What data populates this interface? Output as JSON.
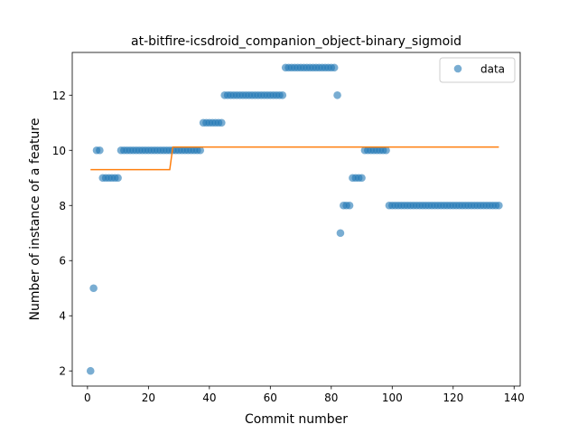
{
  "chart_data": {
    "type": "scatter",
    "title": "at-bitfire-icsdroid_companion_object-binary_sigmoid",
    "xlabel": "Commit number",
    "ylabel": "Number of instance of a feature",
    "xlim": [
      -5,
      142
    ],
    "ylim": [
      1.45,
      13.55
    ],
    "xticks": [
      0,
      20,
      40,
      60,
      80,
      100,
      120,
      140
    ],
    "yticks": [
      2,
      4,
      6,
      8,
      10,
      12
    ],
    "grid": false,
    "legend": {
      "position": "upper right",
      "entries": [
        "data"
      ]
    },
    "colors": {
      "data": "#1f77b4",
      "fit": "#ff7f0e"
    },
    "series": [
      {
        "name": "data",
        "kind": "scatter",
        "points": [
          [
            1,
            2
          ],
          [
            2,
            5
          ],
          [
            3,
            10
          ],
          [
            4,
            10
          ],
          [
            5,
            9
          ],
          [
            6,
            9
          ],
          [
            7,
            9
          ],
          [
            8,
            9
          ],
          [
            9,
            9
          ],
          [
            10,
            9
          ],
          [
            11,
            10
          ],
          [
            12,
            10
          ],
          [
            13,
            10
          ],
          [
            14,
            10
          ],
          [
            15,
            10
          ],
          [
            16,
            10
          ],
          [
            17,
            10
          ],
          [
            18,
            10
          ],
          [
            19,
            10
          ],
          [
            20,
            10
          ],
          [
            21,
            10
          ],
          [
            22,
            10
          ],
          [
            23,
            10
          ],
          [
            24,
            10
          ],
          [
            25,
            10
          ],
          [
            26,
            10
          ],
          [
            27,
            10
          ],
          [
            28,
            10
          ],
          [
            29,
            10
          ],
          [
            30,
            10
          ],
          [
            31,
            10
          ],
          [
            32,
            10
          ],
          [
            33,
            10
          ],
          [
            34,
            10
          ],
          [
            35,
            10
          ],
          [
            36,
            10
          ],
          [
            37,
            10
          ],
          [
            38,
            11
          ],
          [
            39,
            11
          ],
          [
            40,
            11
          ],
          [
            41,
            11
          ],
          [
            42,
            11
          ],
          [
            43,
            11
          ],
          [
            44,
            11
          ],
          [
            45,
            12
          ],
          [
            46,
            12
          ],
          [
            47,
            12
          ],
          [
            48,
            12
          ],
          [
            49,
            12
          ],
          [
            50,
            12
          ],
          [
            51,
            12
          ],
          [
            52,
            12
          ],
          [
            53,
            12
          ],
          [
            54,
            12
          ],
          [
            55,
            12
          ],
          [
            56,
            12
          ],
          [
            57,
            12
          ],
          [
            58,
            12
          ],
          [
            59,
            12
          ],
          [
            60,
            12
          ],
          [
            61,
            12
          ],
          [
            62,
            12
          ],
          [
            63,
            12
          ],
          [
            64,
            12
          ],
          [
            65,
            13
          ],
          [
            66,
            13
          ],
          [
            67,
            13
          ],
          [
            68,
            13
          ],
          [
            69,
            13
          ],
          [
            70,
            13
          ],
          [
            71,
            13
          ],
          [
            72,
            13
          ],
          [
            73,
            13
          ],
          [
            74,
            13
          ],
          [
            75,
            13
          ],
          [
            76,
            13
          ],
          [
            77,
            13
          ],
          [
            78,
            13
          ],
          [
            79,
            13
          ],
          [
            80,
            13
          ],
          [
            81,
            13
          ],
          [
            82,
            12
          ],
          [
            83,
            7
          ],
          [
            84,
            8
          ],
          [
            85,
            8
          ],
          [
            86,
            8
          ],
          [
            87,
            9
          ],
          [
            88,
            9
          ],
          [
            89,
            9
          ],
          [
            90,
            9
          ],
          [
            91,
            10
          ],
          [
            92,
            10
          ],
          [
            93,
            10
          ],
          [
            94,
            10
          ],
          [
            95,
            10
          ],
          [
            96,
            10
          ],
          [
            97,
            10
          ],
          [
            98,
            10
          ],
          [
            99,
            8
          ],
          [
            100,
            8
          ],
          [
            101,
            8
          ],
          [
            102,
            8
          ],
          [
            103,
            8
          ],
          [
            104,
            8
          ],
          [
            105,
            8
          ],
          [
            106,
            8
          ],
          [
            107,
            8
          ],
          [
            108,
            8
          ],
          [
            109,
            8
          ],
          [
            110,
            8
          ],
          [
            111,
            8
          ],
          [
            112,
            8
          ],
          [
            113,
            8
          ],
          [
            114,
            8
          ],
          [
            115,
            8
          ],
          [
            116,
            8
          ],
          [
            117,
            8
          ],
          [
            118,
            8
          ],
          [
            119,
            8
          ],
          [
            120,
            8
          ],
          [
            121,
            8
          ],
          [
            122,
            8
          ],
          [
            123,
            8
          ],
          [
            124,
            8
          ],
          [
            125,
            8
          ],
          [
            126,
            8
          ],
          [
            127,
            8
          ],
          [
            128,
            8
          ],
          [
            129,
            8
          ],
          [
            130,
            8
          ],
          [
            131,
            8
          ],
          [
            132,
            8
          ],
          [
            133,
            8
          ],
          [
            134,
            8
          ],
          [
            135,
            8
          ]
        ]
      },
      {
        "kind": "line",
        "points": [
          [
            1,
            9.3
          ],
          [
            27,
            9.3
          ],
          [
            28,
            10.12
          ],
          [
            135,
            10.12
          ]
        ]
      }
    ]
  }
}
